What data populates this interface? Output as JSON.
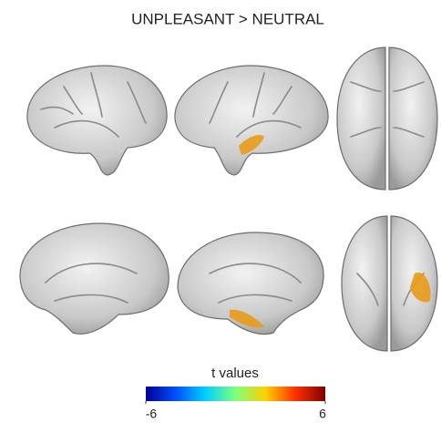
{
  "title": "UNPLEASANT > NEUTRAL",
  "colorbar": {
    "label": "t values",
    "lim": [
      -6,
      6
    ],
    "ticks": [
      -6,
      6
    ],
    "colors": [
      "#00008f",
      "#0050ff",
      "#00d0ff",
      "#80ff80",
      "#ffd000",
      "#ff3000",
      "#800000"
    ]
  }
}
